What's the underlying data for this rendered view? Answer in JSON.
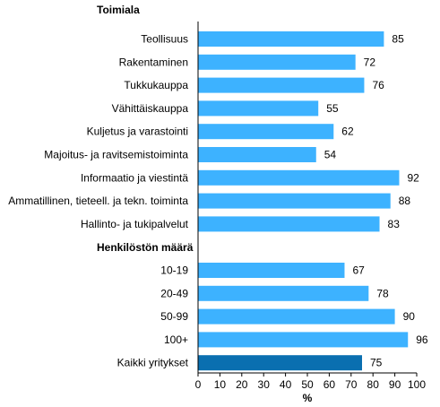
{
  "chart_data": {
    "type": "bar",
    "orientation": "horizontal",
    "groups": [
      {
        "title": "Toimiala",
        "categories": [
          "Teollisuus",
          "Rakentaminen",
          "Tukkukauppa",
          "Vähittäiskauppa",
          "Kuljetus ja varastointi",
          "Majoitus- ja ravitsemistoiminta",
          "Informaatio ja viestintä",
          "Ammatillinen, tieteell. ja tekn. toiminta",
          "Hallinto- ja tukipalvelut"
        ],
        "values": [
          85,
          72,
          76,
          55,
          62,
          54,
          92,
          88,
          83
        ]
      },
      {
        "title": "Henkilöstön määrä",
        "categories": [
          "10-19",
          "20-49",
          "50-99",
          "100+"
        ],
        "values": [
          67,
          78,
          90,
          96
        ]
      },
      {
        "title": "",
        "categories": [
          "Kaikki yritykset"
        ],
        "values": [
          75
        ],
        "highlight": true
      }
    ],
    "xlabel": "%",
    "xlim": [
      0,
      100
    ],
    "xticks": [
      0,
      10,
      20,
      30,
      40,
      50,
      60,
      70,
      80,
      90,
      100
    ],
    "grid": false,
    "colors": {
      "bar": "#3db2ff",
      "highlight": "#0a6fb0",
      "axis": "#000000"
    }
  }
}
